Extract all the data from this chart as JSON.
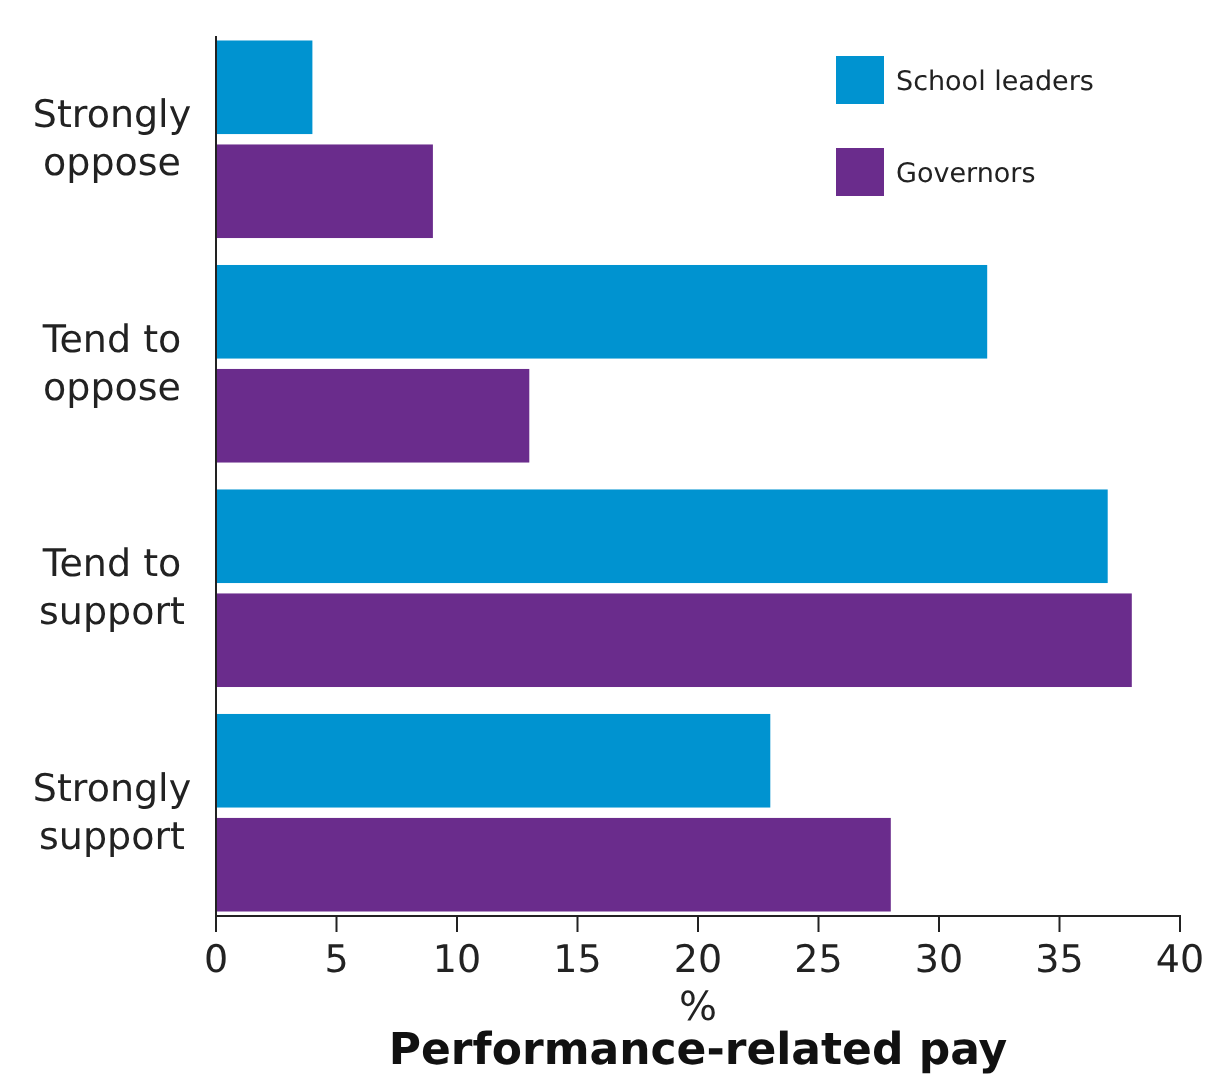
{
  "chart_data": {
    "type": "bar",
    "orientation": "horizontal",
    "title": "Performance-related pay",
    "xlabel": "%",
    "categories": [
      "Strongly oppose",
      "Tend to oppose",
      "Tend to support",
      "Strongly support"
    ],
    "series": [
      {
        "name": "School leaders",
        "color": "#0093d0",
        "values": [
          4,
          32,
          37,
          23
        ]
      },
      {
        "name": "Governors",
        "color": "#6a2c8c",
        "values": [
          9,
          13,
          38,
          28
        ]
      }
    ],
    "xlim": [
      0,
      40
    ],
    "xticks": [
      0,
      5,
      10,
      15,
      20,
      25,
      30,
      35,
      40
    ],
    "grid": false,
    "legend": "top right"
  }
}
